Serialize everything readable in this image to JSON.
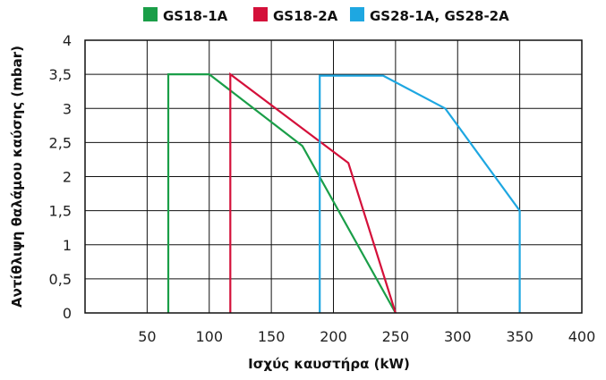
{
  "chart_data": {
    "type": "line",
    "title": "",
    "xlabel": "Ισχύς καυστήρα (kW)",
    "ylabel": "Αντίθλιψη θαλάμου καύσης (mbar)",
    "xlim": [
      0,
      400
    ],
    "ylim": [
      0,
      4
    ],
    "x_ticks": [
      "50",
      "100",
      "150",
      "200",
      "250",
      "300",
      "350",
      "400"
    ],
    "y_ticks": [
      "0",
      "0,5",
      "1",
      "1,5",
      "2",
      "2,5",
      "3",
      "3,5",
      "4"
    ],
    "grid": true,
    "legend_position": "top",
    "series": [
      {
        "name": "GS18-1A",
        "color": "#1a9e48",
        "points": [
          [
            67,
            0
          ],
          [
            67,
            3.5
          ],
          [
            100,
            3.5
          ],
          [
            175,
            2.45
          ],
          [
            250,
            0
          ]
        ]
      },
      {
        "name": "GS18-2A",
        "color": "#d4103a",
        "points": [
          [
            117,
            0
          ],
          [
            117,
            3.5
          ],
          [
            212,
            2.2
          ],
          [
            250,
            0
          ]
        ]
      },
      {
        "name": "GS28-1A, GS28-2A",
        "color": "#1ea7e1",
        "points": [
          [
            189,
            0
          ],
          [
            189,
            3.48
          ],
          [
            240,
            3.48
          ],
          [
            290,
            3.0
          ],
          [
            350,
            1.5
          ],
          [
            350,
            0
          ]
        ]
      }
    ]
  }
}
